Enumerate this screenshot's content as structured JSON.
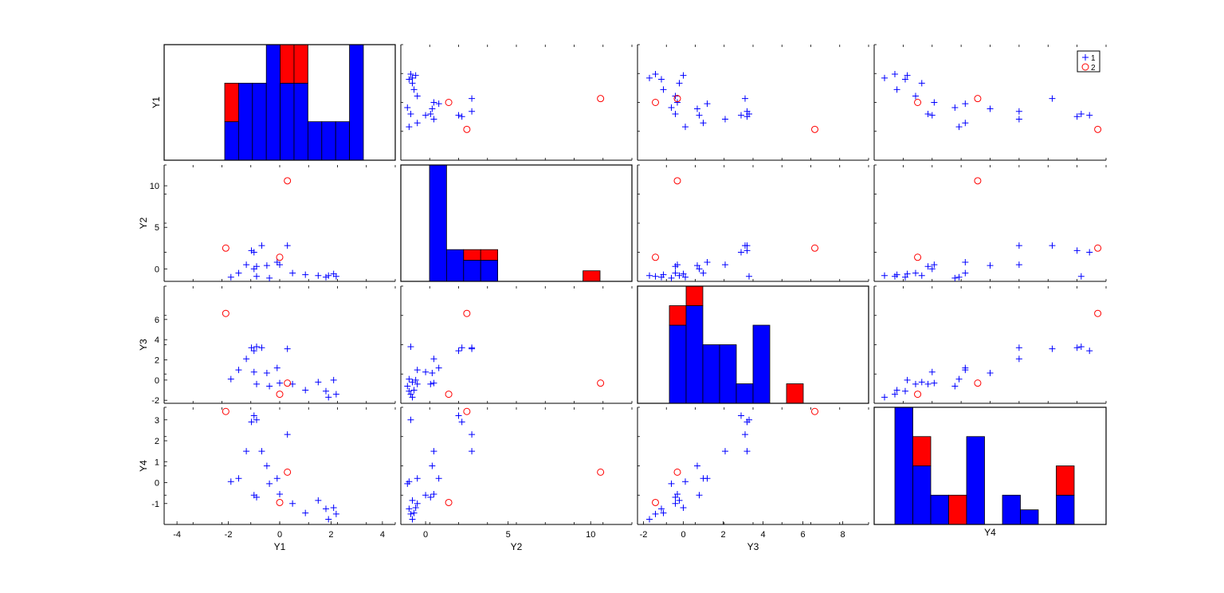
{
  "chart_data": {
    "type": "scatter",
    "title": "",
    "variables": [
      "Y1",
      "Y2",
      "Y3",
      "Y4"
    ],
    "legend": {
      "placement": "top-right",
      "entries": [
        "1",
        "2"
      ]
    },
    "colors": {
      "group1": "#0000ff",
      "group2": "#ff0000",
      "bar_blue": "#0000ff",
      "bar_red": "#ff0000",
      "axis": "#000000"
    },
    "axis_ranges": {
      "Y1": [
        -4.5,
        4.5
      ],
      "Y2": [
        -1.5,
        12.5
      ],
      "Y3": [
        -2.3,
        9.3
      ],
      "Y4": [
        -2.0,
        3.6
      ]
    },
    "ticks": {
      "Y1": [
        "-4",
        "-2",
        "0",
        "2",
        "4"
      ],
      "Y2": [
        "0",
        "5",
        "10"
      ],
      "Y3": [
        "-2",
        "0",
        "2",
        "4",
        "6",
        "8"
      ],
      "Y4": [
        "-1",
        "0",
        "1",
        "2",
        "3"
      ],
      "Y3_row": [
        "-2",
        "0",
        "2",
        "4",
        "6"
      ]
    },
    "group1": [
      {
        "Y1": -1.1,
        "Y2": 2.2,
        "Y3": 3.2,
        "Y4": 2.9
      },
      {
        "Y1": -1.0,
        "Y2": 2.0,
        "Y3": 2.9,
        "Y4": 3.2
      },
      {
        "Y1": -0.9,
        "Y2": -0.9,
        "Y3": 3.3,
        "Y4": 3.0
      },
      {
        "Y1": -0.7,
        "Y2": 2.8,
        "Y3": 3.2,
        "Y4": 1.5
      },
      {
        "Y1": -1.3,
        "Y2": 0.5,
        "Y3": 2.1,
        "Y4": 1.5
      },
      {
        "Y1": 0.3,
        "Y2": 2.8,
        "Y3": 3.1,
        "Y4": 2.3
      },
      {
        "Y1": -1.6,
        "Y2": -0.5,
        "Y3": 1.0,
        "Y4": 0.2
      },
      {
        "Y1": -0.5,
        "Y2": 0.4,
        "Y3": 0.7,
        "Y4": 0.8
      },
      {
        "Y1": -1.9,
        "Y2": -1.0,
        "Y3": 0.1,
        "Y4": 0.05
      },
      {
        "Y1": -0.4,
        "Y2": -1.1,
        "Y3": -0.6,
        "Y4": -0.05
      },
      {
        "Y1": -0.1,
        "Y2": 0.8,
        "Y3": 1.2,
        "Y4": 0.2
      },
      {
        "Y1": 0.0,
        "Y2": 0.5,
        "Y3": -0.3,
        "Y4": -0.55
      },
      {
        "Y1": -1.0,
        "Y2": 0.0,
        "Y3": 0.8,
        "Y4": -0.6
      },
      {
        "Y1": -0.9,
        "Y2": 0.3,
        "Y3": -0.4,
        "Y4": -0.7
      },
      {
        "Y1": 0.5,
        "Y2": -0.5,
        "Y3": -0.4,
        "Y4": -1.0
      },
      {
        "Y1": 1.0,
        "Y2": -0.7,
        "Y3": -1.0,
        "Y4": -1.45
      },
      {
        "Y1": 1.5,
        "Y2": -0.8,
        "Y3": -0.2,
        "Y4": -0.85
      },
      {
        "Y1": 1.8,
        "Y2": -1.0,
        "Y3": -1.1,
        "Y4": -1.25
      },
      {
        "Y1": 2.1,
        "Y2": -0.6,
        "Y3": 0.0,
        "Y4": -1.2
      },
      {
        "Y1": 1.9,
        "Y2": -0.8,
        "Y3": -1.7,
        "Y4": -1.75
      },
      {
        "Y1": 2.2,
        "Y2": -0.9,
        "Y3": -1.4,
        "Y4": -1.5
      }
    ],
    "group2": [
      {
        "Y1": -2.1,
        "Y2": 2.5,
        "Y3": 6.6,
        "Y4": 3.4
      },
      {
        "Y1": 0.3,
        "Y2": 10.6,
        "Y3": -0.3,
        "Y4": 0.5
      },
      {
        "Y1": 0.0,
        "Y2": 1.4,
        "Y3": -1.4,
        "Y4": -0.95
      }
    ],
    "histograms": {
      "Y1": {
        "blue": [
          1,
          2,
          2,
          3,
          2,
          2,
          1,
          1,
          1,
          3
        ],
        "red": [
          1,
          0,
          0,
          0,
          1,
          1,
          0,
          0,
          0,
          0
        ]
      },
      "Y2": {
        "blue": [
          11,
          3,
          2,
          2,
          0,
          0,
          0,
          0,
          0,
          0
        ],
        "red": [
          0,
          0,
          1,
          1,
          0,
          0,
          0,
          0,
          0,
          1
        ]
      },
      "Y3": {
        "blue": [
          4,
          5,
          3,
          3,
          1,
          4,
          0,
          0,
          0,
          0
        ],
        "red": [
          1,
          1,
          0,
          0,
          0,
          0,
          0,
          1,
          0,
          0
        ]
      },
      "Y4": {
        "blue": [
          4,
          2,
          1,
          0,
          3,
          0,
          1,
          0.5,
          0,
          1
        ],
        "red": [
          0,
          1,
          0,
          1,
          0,
          0,
          0,
          0,
          0,
          1
        ]
      }
    }
  }
}
